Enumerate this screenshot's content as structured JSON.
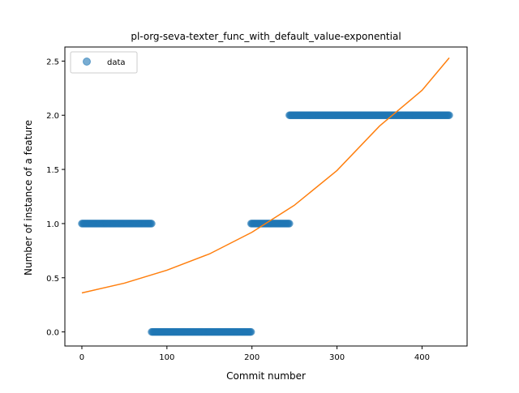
{
  "chart_data": {
    "type": "scatter",
    "title": "pl-org-seva-texter_func_with_default_value-exponential",
    "xlabel": "Commit number",
    "ylabel": "Number of instance of a feature",
    "xlim": [
      -20,
      453
    ],
    "ylim": [
      -0.13,
      2.63
    ],
    "xticks": [
      0,
      100,
      200,
      300,
      400
    ],
    "xtick_labels": [
      "0",
      "100",
      "200",
      "300",
      "400"
    ],
    "yticks": [
      0.0,
      0.5,
      1.0,
      1.5,
      2.0,
      2.5
    ],
    "ytick_labels": [
      "0.0",
      "0.5",
      "1.0",
      "1.5",
      "2.0",
      "2.5"
    ],
    "grid": false,
    "legend": {
      "position": "upper-left",
      "entries": [
        "data"
      ]
    },
    "series": [
      {
        "name": "data",
        "kind": "scatter",
        "color": "#1f77b4",
        "alpha": 0.6,
        "segments": [
          {
            "x_start": 0,
            "x_end": 82,
            "y": 1.0
          },
          {
            "x_start": 82,
            "x_end": 199,
            "y": 0.0
          },
          {
            "x_start": 199,
            "x_end": 244,
            "y": 1.0
          },
          {
            "x_start": 244,
            "x_end": 432,
            "y": 2.0
          }
        ]
      },
      {
        "kind": "line",
        "color": "#ff7f0e",
        "model": "exponential",
        "x": [
          0,
          50,
          100,
          150,
          200,
          250,
          300,
          350,
          400,
          432
        ],
        "y": [
          0.36,
          0.45,
          0.57,
          0.72,
          0.92,
          1.17,
          1.49,
          1.9,
          2.23,
          2.53
        ]
      }
    ]
  }
}
